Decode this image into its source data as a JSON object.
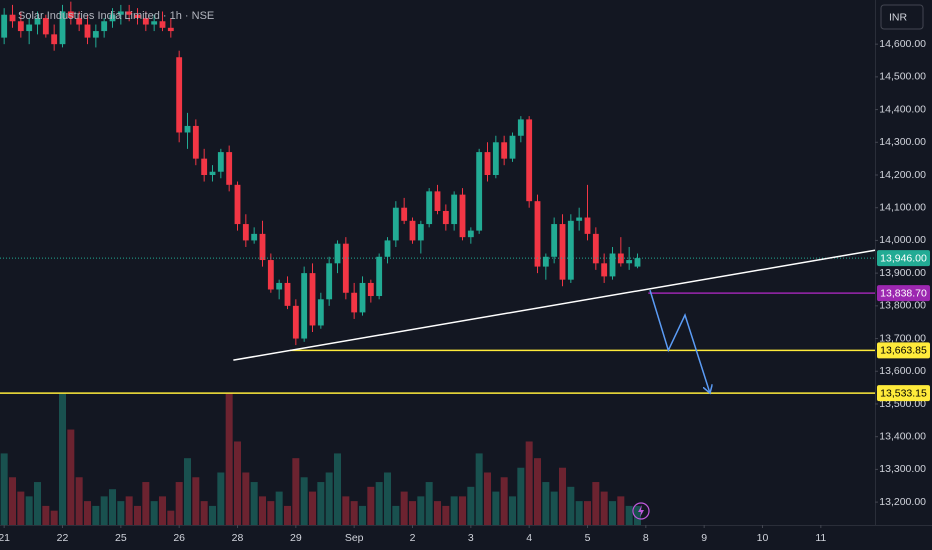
{
  "chart_data": {
    "type": "candlestick",
    "title": "Solar Industries India Limited · 1h · NSE",
    "currency": "INR",
    "up_color": "#22ab94",
    "down_color": "#f23645",
    "xlim": [
      -0.5,
      104.5
    ],
    "xticks": [
      {
        "value": 0,
        "label": "21"
      },
      {
        "value": 7,
        "label": "22"
      },
      {
        "value": 14,
        "label": "25"
      },
      {
        "value": 21,
        "label": "26"
      },
      {
        "value": 28,
        "label": "28"
      },
      {
        "value": 35,
        "label": "29"
      },
      {
        "value": 42,
        "label": "Sep"
      },
      {
        "value": 49,
        "label": "2"
      },
      {
        "value": 56,
        "label": "3"
      },
      {
        "value": 63,
        "label": "4"
      },
      {
        "value": 70,
        "label": "5"
      },
      {
        "value": 77,
        "label": "8"
      },
      {
        "value": 84,
        "label": "9"
      },
      {
        "value": 91,
        "label": "10"
      },
      {
        "value": 98,
        "label": "11"
      }
    ],
    "ylim": [
      13130,
      14735
    ],
    "yticks": [
      {
        "value": 13200,
        "label": "13,200.00"
      },
      {
        "value": 13300,
        "label": "13,300.00"
      },
      {
        "value": 13400,
        "label": "13,400.00"
      },
      {
        "value": 13500,
        "label": "13,500.00"
      },
      {
        "value": 13600,
        "label": "13,600.00"
      },
      {
        "value": 13700,
        "label": "13,700.00"
      },
      {
        "value": 13800,
        "label": "13,800.00"
      },
      {
        "value": 13900,
        "label": "13,900.00"
      },
      {
        "value": 14000,
        "label": "14,000.00"
      },
      {
        "value": 14100,
        "label": "14,100.00"
      },
      {
        "value": 14200,
        "label": "14,200.00"
      },
      {
        "value": 14300,
        "label": "14,300.00"
      },
      {
        "value": 14400,
        "label": "14,400.00"
      },
      {
        "value": 14500,
        "label": "14,500.00"
      },
      {
        "value": 14600,
        "label": "14,600.00"
      }
    ],
    "grid": false,
    "open": [
      14620,
      14690,
      14670,
      14640,
      14660,
      14680,
      14630,
      14600,
      14700,
      14680,
      14660,
      14620,
      14640,
      14670,
      14690,
      14700,
      14690,
      14680,
      14660,
      14670,
      14650,
      14560,
      14330,
      14350,
      14250,
      14200,
      14210,
      14270,
      14170,
      14050,
      14000,
      14020,
      13940,
      13850,
      13870,
      13800,
      13700,
      13900,
      13740,
      13820,
      13930,
      13990,
      13840,
      13780,
      13870,
      13830,
      13950,
      14000,
      14100,
      14060,
      14000,
      14050,
      14150,
      14090,
      14050,
      14140,
      14010,
      14030,
      14270,
      14200,
      14300,
      14250,
      14320,
      14370,
      14120,
      13920,
      13950,
      14050,
      13880,
      14060,
      14070,
      14020,
      13930,
      13890,
      13960,
      13930,
      13920
    ],
    "high": [
      14710,
      14720,
      14700,
      14680,
      14700,
      14690,
      14660,
      14720,
      14730,
      14700,
      14690,
      14660,
      14680,
      14710,
      14720,
      14720,
      14710,
      14700,
      14690,
      14700,
      14680,
      14580,
      14390,
      14370,
      14280,
      14230,
      14280,
      14290,
      14180,
      14080,
      14040,
      14060,
      13960,
      13880,
      13890,
      13820,
      13920,
      13930,
      13840,
      13950,
      14000,
      14010,
      13870,
      13890,
      13880,
      13960,
      14010,
      14120,
      14130,
      14070,
      14060,
      14160,
      14170,
      14110,
      14150,
      14160,
      14040,
      14280,
      14300,
      14320,
      14320,
      14330,
      14380,
      14380,
      14140,
      13960,
      14070,
      14080,
      14080,
      14100,
      14170,
      14040,
      13960,
      13980,
      14010,
      13980,
      13960
    ],
    "low": [
      14600,
      14650,
      14620,
      14600,
      14630,
      14620,
      14580,
      14590,
      14660,
      14640,
      14600,
      14590,
      14620,
      14650,
      14660,
      14670,
      14660,
      14640,
      14640,
      14640,
      14620,
      14300,
      14280,
      14230,
      14180,
      14180,
      14190,
      14150,
      14030,
      13980,
      13990,
      13920,
      13840,
      13820,
      13790,
      13680,
      13690,
      13720,
      13730,
      13800,
      13900,
      13820,
      13760,
      13770,
      13810,
      13820,
      13930,
      13980,
      14050,
      13990,
      13960,
      14040,
      14080,
      14030,
      14030,
      14000,
      13990,
      14020,
      14180,
      14190,
      14230,
      14240,
      14300,
      14100,
      13900,
      13880,
      13930,
      13860,
      13870,
      14030,
      14000,
      13910,
      13870,
      13880,
      13920,
      13910,
      13915
    ],
    "close": [
      14690,
      14670,
      14640,
      14660,
      14680,
      14630,
      14600,
      14700,
      14680,
      14660,
      14620,
      14640,
      14670,
      14690,
      14700,
      14690,
      14680,
      14660,
      14670,
      14650,
      14640,
      14330,
      14350,
      14250,
      14200,
      14210,
      14270,
      14170,
      14050,
      14000,
      14020,
      13940,
      13850,
      13870,
      13800,
      13700,
      13900,
      13740,
      13820,
      13930,
      13990,
      13840,
      13780,
      13870,
      13830,
      13950,
      14000,
      14100,
      14060,
      14000,
      14050,
      14150,
      14090,
      14050,
      14140,
      14010,
      14030,
      14270,
      14200,
      14300,
      14250,
      14320,
      14370,
      14120,
      13920,
      13950,
      14050,
      13880,
      14060,
      14070,
      14020,
      13930,
      13890,
      13960,
      13930,
      13940,
      13946
    ],
    "volume": {
      "axis": "y2",
      "values": [
        30,
        20,
        14,
        12,
        18,
        8,
        6,
        55,
        40,
        20,
        10,
        8,
        12,
        15,
        10,
        12,
        8,
        18,
        10,
        12,
        6,
        18,
        28,
        20,
        10,
        8,
        22,
        55,
        35,
        22,
        18,
        12,
        10,
        14,
        8,
        28,
        20,
        14,
        18,
        22,
        30,
        12,
        10,
        8,
        16,
        18,
        22,
        8,
        14,
        10,
        12,
        18,
        10,
        8,
        12,
        12,
        16,
        30,
        22,
        14,
        20,
        12,
        24,
        35,
        28,
        18,
        14,
        24,
        16,
        10,
        10,
        18,
        14,
        10,
        12,
        8,
        8
      ]
    },
    "y2lim": [
      0,
      220
    ],
    "price_lines": [
      {
        "value": 13946,
        "label": "13,946.00",
        "color": "#22ab94",
        "text_color": "#ffffff",
        "from": -0.5,
        "style": "dotted"
      },
      {
        "value": 13838.7,
        "label": "13,838.70",
        "color": "#9c27b0",
        "text_color": "#ffffff",
        "from": 77.3,
        "style": "solid"
      },
      {
        "value": 13663.85,
        "label": "13,663.85",
        "color": "#ffeb3b",
        "text_color": "#000000",
        "from": 34.3,
        "style": "solid"
      },
      {
        "value": 13533.15,
        "label": "13,533.15",
        "color": "#ffeb3b",
        "text_color": "#000000",
        "from": -0.5,
        "style": "solid"
      }
    ],
    "drawings": [
      {
        "x": [
          27.5,
          104.5
        ],
        "y": [
          13634,
          13970
        ],
        "color": "#ffffff",
        "arrow": false
      },
      {
        "x": [
          77.5,
          79.7,
          81.7,
          84.7
        ],
        "y": [
          13848,
          13664,
          13772,
          13533
        ],
        "color": "#5b9cf6",
        "arrow": true
      }
    ]
  }
}
